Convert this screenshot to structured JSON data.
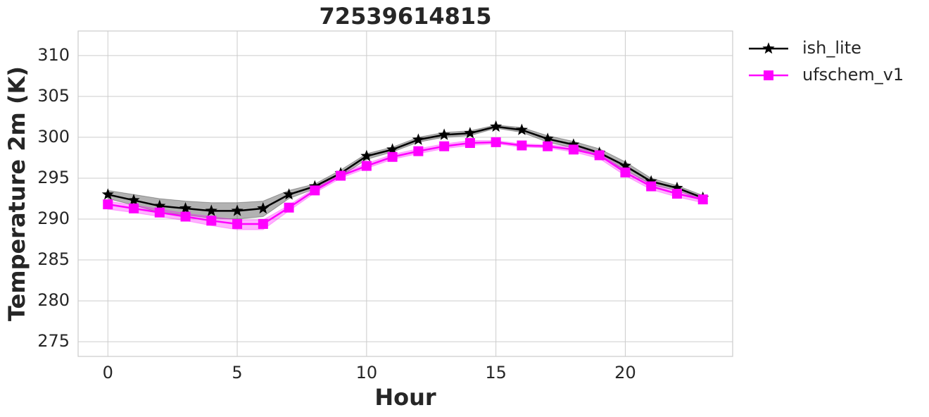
{
  "chart_data": {
    "type": "line",
    "title": "72539614815",
    "x_label": "Hour",
    "y_label": "Temperature 2m (K)",
    "x": [
      0,
      1,
      2,
      3,
      4,
      5,
      6,
      7,
      8,
      9,
      10,
      11,
      12,
      13,
      14,
      15,
      16,
      17,
      18,
      19,
      20,
      21,
      22,
      23
    ],
    "xlim": [
      -1.15,
      24.15
    ],
    "xticks": [
      0,
      5,
      10,
      15,
      20
    ],
    "ylim": [
      273.2,
      313
    ],
    "yticks": [
      275,
      280,
      285,
      290,
      295,
      300,
      305,
      310
    ],
    "grid": true,
    "legend": "outside-upper-right",
    "series": [
      {
        "name": "ish_lite",
        "color": "#000000",
        "marker": "star",
        "values": [
          293.0,
          292.3,
          291.6,
          291.3,
          291.0,
          291.0,
          291.3,
          293.0,
          294.0,
          295.6,
          297.7,
          298.5,
          299.7,
          300.3,
          300.5,
          301.3,
          300.9,
          299.8,
          299.1,
          298.1,
          296.5,
          294.6,
          293.8,
          292.6
        ],
        "upper": [
          293.5,
          293.0,
          292.5,
          292.2,
          292.0,
          292.0,
          292.2,
          293.5,
          294.3,
          296.0,
          298.0,
          298.8,
          300.0,
          300.6,
          300.8,
          301.5,
          301.2,
          300.2,
          299.5,
          298.6,
          297.0,
          295.0,
          294.1,
          292.9
        ],
        "lower": [
          292.5,
          291.7,
          290.8,
          290.5,
          290.1,
          290.0,
          290.3,
          292.5,
          293.7,
          295.2,
          297.3,
          298.2,
          299.4,
          300.0,
          300.2,
          301.1,
          300.6,
          299.4,
          298.7,
          297.6,
          296.0,
          294.2,
          293.5,
          292.3
        ]
      },
      {
        "name": "ufschem_v1",
        "color": "#ff00ff",
        "marker": "square",
        "values": [
          291.8,
          291.3,
          290.8,
          290.3,
          289.8,
          289.4,
          289.4,
          291.4,
          293.5,
          295.3,
          296.5,
          297.6,
          298.3,
          298.9,
          299.3,
          299.4,
          299.0,
          298.9,
          298.5,
          297.8,
          295.7,
          294.0,
          293.1,
          292.4
        ],
        "upper": [
          292.2,
          291.7,
          291.2,
          290.7,
          290.3,
          289.9,
          289.9,
          291.7,
          293.8,
          295.6,
          296.8,
          297.9,
          298.6,
          299.2,
          299.6,
          299.6,
          299.2,
          299.1,
          298.8,
          298.1,
          296.0,
          294.3,
          293.4,
          292.7
        ],
        "lower": [
          291.2,
          290.8,
          290.3,
          289.8,
          289.2,
          288.7,
          288.7,
          291.0,
          293.2,
          295.0,
          296.2,
          297.3,
          298.0,
          298.6,
          299.0,
          299.2,
          298.8,
          298.7,
          298.2,
          297.4,
          295.3,
          293.6,
          292.7,
          292.0
        ]
      }
    ]
  }
}
